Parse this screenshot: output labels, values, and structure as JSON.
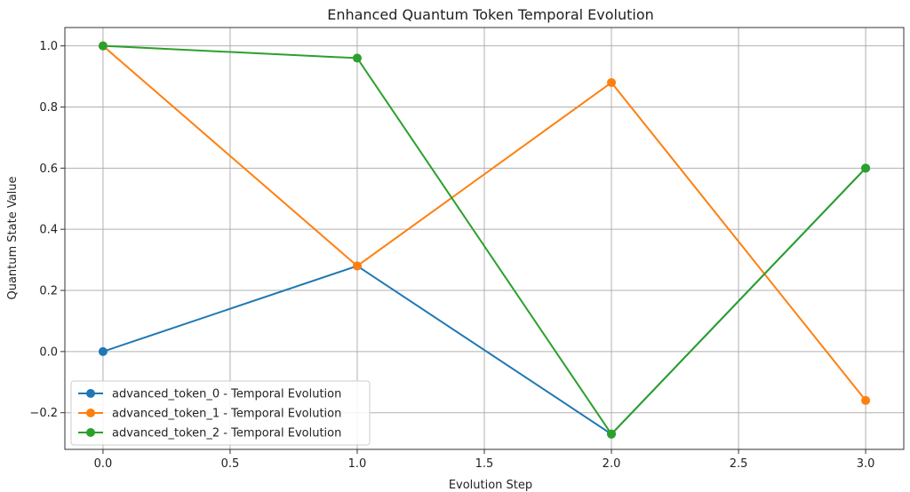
{
  "chart_data": {
    "type": "line",
    "title": "Enhanced Quantum Token Temporal Evolution",
    "xlabel": "Evolution Step",
    "ylabel": "Quantum State Value",
    "x": [
      0,
      1,
      2,
      3
    ],
    "xlim": [
      -0.15,
      3.15
    ],
    "ylim": [
      -0.32,
      1.06
    ],
    "xticks": [
      0.0,
      0.5,
      1.0,
      1.5,
      2.0,
      2.5,
      3.0
    ],
    "xtick_labels": [
      "0.0",
      "0.5",
      "1.0",
      "1.5",
      "2.0",
      "2.5",
      "3.0"
    ],
    "yticks": [
      -0.2,
      0.0,
      0.2,
      0.4,
      0.6,
      0.8,
      1.0
    ],
    "ytick_labels": [
      "−0.2",
      "0.0",
      "0.2",
      "0.4",
      "0.6",
      "0.8",
      "1.0"
    ],
    "grid": true,
    "legend_position": "lower-left",
    "series": [
      {
        "name": "advanced_token_0 - Temporal Evolution",
        "color": "#1f77b4",
        "values": [
          0.0,
          0.28,
          -0.27,
          0.6
        ]
      },
      {
        "name": "advanced_token_1 - Temporal Evolution",
        "color": "#ff7f0e",
        "values": [
          1.0,
          0.28,
          0.88,
          -0.16
        ]
      },
      {
        "name": "advanced_token_2 - Temporal Evolution",
        "color": "#2ca02c",
        "values": [
          1.0,
          0.96,
          -0.27,
          0.6
        ]
      }
    ]
  }
}
